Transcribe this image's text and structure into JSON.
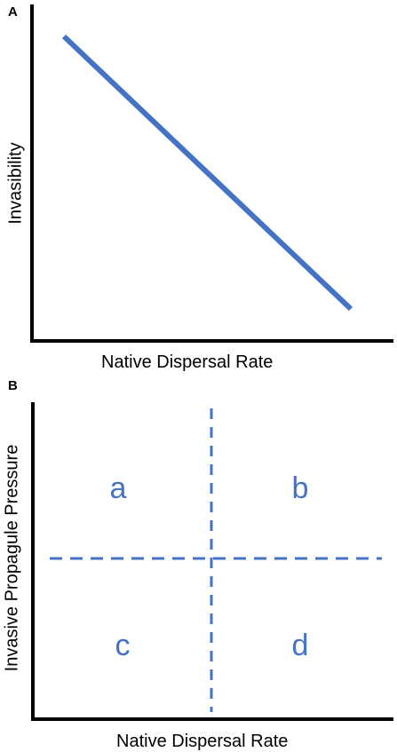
{
  "panel_a": {
    "letter": "A",
    "y_label": "Invasibility",
    "x_label": "Native Dispersal Rate",
    "line_color": "#4472C4",
    "axis_color": "#000000"
  },
  "panel_b": {
    "letter": "B",
    "y_label": "Invasive Propagule Pressure",
    "x_label": "Native Dispersal Rate",
    "quadrants": {
      "top_left": "a",
      "top_right": "b",
      "bottom_left": "c",
      "bottom_right": "d"
    },
    "divider_color": "#4472C4",
    "axis_color": "#000000"
  }
}
